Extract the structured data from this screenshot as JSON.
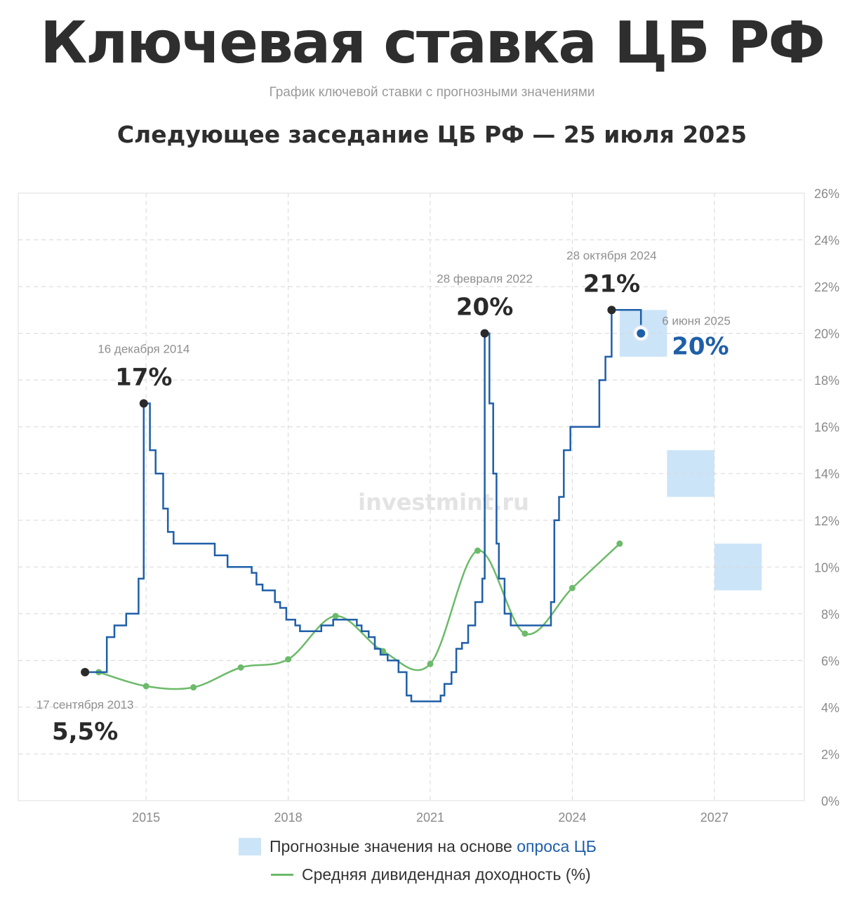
{
  "header": {
    "title": "Ключевая ставка ЦБ РФ",
    "subtitle": "График ключевой ставки с прогнозными значениями",
    "next_meeting": "Следующее заседание ЦБ РФ — 25 июля 2025"
  },
  "watermark": "investmint.ru",
  "legend": {
    "forecast_prefix": "Прогнозные значения на основе ",
    "forecast_link": "опроса ЦБ",
    "dividend": "Средняя дивидендная доходность (%)"
  },
  "colors": {
    "key_rate": "#1f5fa8",
    "dividend": "#6cba6a",
    "forecast": "#cce4f8",
    "annotation_dark": "#2a2a2a",
    "annotation_blue": "#1f5fa8"
  },
  "chart_data": {
    "type": "line",
    "x_axis": {
      "ticks": [
        2015,
        2018,
        2021,
        2024,
        2027
      ],
      "range": [
        2012.3,
        2028.9
      ]
    },
    "y_axis": {
      "ticks": [
        "0%",
        "2%",
        "4%",
        "6%",
        "8%",
        "10%",
        "12%",
        "14%",
        "16%",
        "18%",
        "20%",
        "22%",
        "24%",
        "26%"
      ],
      "range": [
        0,
        26
      ],
      "position": "right"
    },
    "grid": true,
    "series": [
      {
        "name": "Ключевая ставка",
        "style": "step",
        "points": [
          [
            2013.71,
            5.5
          ],
          [
            2014.17,
            5.5
          ],
          [
            2014.17,
            7.0
          ],
          [
            2014.33,
            7.0
          ],
          [
            2014.33,
            7.5
          ],
          [
            2014.58,
            7.5
          ],
          [
            2014.58,
            8.0
          ],
          [
            2014.84,
            8.0
          ],
          [
            2014.84,
            9.5
          ],
          [
            2014.95,
            9.5
          ],
          [
            2014.95,
            17.0
          ],
          [
            2015.08,
            17.0
          ],
          [
            2015.08,
            15.0
          ],
          [
            2015.2,
            15.0
          ],
          [
            2015.2,
            14.0
          ],
          [
            2015.36,
            14.0
          ],
          [
            2015.36,
            12.5
          ],
          [
            2015.46,
            12.5
          ],
          [
            2015.46,
            11.5
          ],
          [
            2015.58,
            11.5
          ],
          [
            2015.58,
            11.0
          ],
          [
            2016.45,
            11.0
          ],
          [
            2016.45,
            10.5
          ],
          [
            2016.72,
            10.5
          ],
          [
            2016.72,
            10.0
          ],
          [
            2017.23,
            10.0
          ],
          [
            2017.23,
            9.75
          ],
          [
            2017.33,
            9.75
          ],
          [
            2017.33,
            9.25
          ],
          [
            2017.46,
            9.25
          ],
          [
            2017.46,
            9.0
          ],
          [
            2017.72,
            9.0
          ],
          [
            2017.72,
            8.5
          ],
          [
            2017.83,
            8.5
          ],
          [
            2017.83,
            8.25
          ],
          [
            2017.96,
            8.25
          ],
          [
            2017.96,
            7.75
          ],
          [
            2018.15,
            7.75
          ],
          [
            2018.15,
            7.5
          ],
          [
            2018.25,
            7.5
          ],
          [
            2018.25,
            7.25
          ],
          [
            2018.7,
            7.25
          ],
          [
            2018.7,
            7.5
          ],
          [
            2018.95,
            7.5
          ],
          [
            2018.95,
            7.75
          ],
          [
            2019.45,
            7.75
          ],
          [
            2019.45,
            7.5
          ],
          [
            2019.55,
            7.5
          ],
          [
            2019.55,
            7.25
          ],
          [
            2019.7,
            7.25
          ],
          [
            2019.7,
            7.0
          ],
          [
            2019.83,
            7.0
          ],
          [
            2019.83,
            6.5
          ],
          [
            2019.95,
            6.5
          ],
          [
            2019.95,
            6.25
          ],
          [
            2020.1,
            6.25
          ],
          [
            2020.1,
            6.0
          ],
          [
            2020.33,
            6.0
          ],
          [
            2020.33,
            5.5
          ],
          [
            2020.5,
            5.5
          ],
          [
            2020.5,
            4.5
          ],
          [
            2020.6,
            4.5
          ],
          [
            2020.6,
            4.25
          ],
          [
            2021.22,
            4.25
          ],
          [
            2021.22,
            4.5
          ],
          [
            2021.3,
            4.5
          ],
          [
            2021.3,
            5.0
          ],
          [
            2021.45,
            5.0
          ],
          [
            2021.45,
            5.5
          ],
          [
            2021.55,
            5.5
          ],
          [
            2021.55,
            6.5
          ],
          [
            2021.67,
            6.5
          ],
          [
            2021.67,
            6.75
          ],
          [
            2021.8,
            6.75
          ],
          [
            2021.8,
            7.5
          ],
          [
            2021.95,
            7.5
          ],
          [
            2021.95,
            8.5
          ],
          [
            2022.1,
            8.5
          ],
          [
            2022.1,
            9.5
          ],
          [
            2022.15,
            9.5
          ],
          [
            2022.15,
            20.0
          ],
          [
            2022.25,
            20.0
          ],
          [
            2022.25,
            17.0
          ],
          [
            2022.33,
            17.0
          ],
          [
            2022.33,
            14.0
          ],
          [
            2022.4,
            14.0
          ],
          [
            2022.4,
            11.0
          ],
          [
            2022.45,
            11.0
          ],
          [
            2022.45,
            9.5
          ],
          [
            2022.57,
            9.5
          ],
          [
            2022.57,
            8.0
          ],
          [
            2022.7,
            8.0
          ],
          [
            2022.7,
            7.5
          ],
          [
            2023.55,
            7.5
          ],
          [
            2023.55,
            8.5
          ],
          [
            2023.62,
            8.5
          ],
          [
            2023.62,
            12.0
          ],
          [
            2023.72,
            12.0
          ],
          [
            2023.72,
            13.0
          ],
          [
            2023.82,
            13.0
          ],
          [
            2023.82,
            15.0
          ],
          [
            2023.96,
            15.0
          ],
          [
            2023.96,
            16.0
          ],
          [
            2024.57,
            16.0
          ],
          [
            2024.57,
            18.0
          ],
          [
            2024.7,
            18.0
          ],
          [
            2024.7,
            19.0
          ],
          [
            2024.83,
            19.0
          ],
          [
            2024.83,
            21.0
          ],
          [
            2025.45,
            21.0
          ],
          [
            2025.45,
            20.0
          ]
        ]
      },
      {
        "name": "Средняя дивидендная доходность (%)",
        "style": "smooth",
        "points": [
          [
            2014.0,
            5.5
          ],
          [
            2015.0,
            4.9
          ],
          [
            2016.0,
            4.85
          ],
          [
            2017.0,
            5.7
          ],
          [
            2018.0,
            6.05
          ],
          [
            2019.0,
            7.9
          ],
          [
            2020.0,
            6.4
          ],
          [
            2021.0,
            5.85
          ],
          [
            2022.0,
            10.7
          ],
          [
            2023.0,
            7.15
          ],
          [
            2024.0,
            9.1
          ],
          [
            2025.0,
            11.0
          ]
        ]
      }
    ],
    "forecast_ranges": [
      {
        "x": [
          2025.0,
          2026.0
        ],
        "y": [
          19.0,
          21.0
        ]
      },
      {
        "x": [
          2026.0,
          2027.0
        ],
        "y": [
          13.0,
          15.0
        ]
      },
      {
        "x": [
          2027.0,
          2028.0
        ],
        "y": [
          9.0,
          11.0
        ]
      }
    ],
    "annotations": [
      {
        "date": "17 сентября 2013",
        "value": "5,5%",
        "x": 2013.71,
        "y": 5.5,
        "side": "below",
        "color": "dark"
      },
      {
        "date": "16 декабря 2014",
        "value": "17%",
        "x": 2014.95,
        "y": 17.0,
        "side": "above",
        "color": "dark"
      },
      {
        "date": "28 февраля 2022",
        "value": "20%",
        "x": 2022.15,
        "y": 20.0,
        "side": "above",
        "color": "dark"
      },
      {
        "date": "28 октября 2024",
        "value": "21%",
        "x": 2024.83,
        "y": 21.0,
        "side": "above",
        "color": "dark"
      },
      {
        "date": "6 июня 2025",
        "value": "20%",
        "x": 2025.45,
        "y": 20.0,
        "side": "right",
        "color": "blue"
      }
    ]
  }
}
